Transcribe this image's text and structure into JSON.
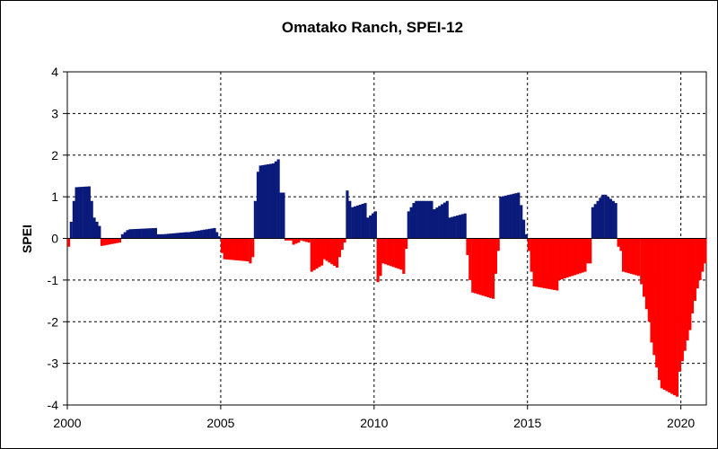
{
  "chart_data": {
    "type": "bar",
    "title": "Omatako Ranch, SPEI-12",
    "xlabel": "",
    "ylabel": "SPEI",
    "xlim": [
      2000,
      2020.83
    ],
    "ylim": [
      -4,
      4
    ],
    "x_ticks": [
      2000,
      2005,
      2010,
      2015,
      2020
    ],
    "y_ticks": [
      4,
      3,
      2,
      1,
      0,
      -1,
      -2,
      -3,
      -4
    ],
    "grid": true,
    "legend": "none",
    "colors": {
      "positive": "#0a1a7a",
      "negative": "#ff0000"
    },
    "segments": [
      {
        "x0": 2000.0,
        "x1": 2000.08,
        "y0": -0.2,
        "y1": -0.2
      },
      {
        "x0": 2000.08,
        "x1": 2000.17,
        "y0": 0.4,
        "y1": 0.5
      },
      {
        "x0": 2000.17,
        "x1": 2000.25,
        "y0": 0.9,
        "y1": 1.1
      },
      {
        "x0": 2000.25,
        "x1": 2000.75,
        "y0": 1.23,
        "y1": 1.25
      },
      {
        "x0": 2000.75,
        "x1": 2000.92,
        "y0": 0.9,
        "y1": 0.5
      },
      {
        "x0": 2000.92,
        "x1": 2001.08,
        "y0": 0.4,
        "y1": 0.3
      },
      {
        "x0": 2001.08,
        "x1": 2001.75,
        "y0": -0.18,
        "y1": -0.1
      },
      {
        "x0": 2001.75,
        "x1": 2002.0,
        "y0": 0.1,
        "y1": 0.2
      },
      {
        "x0": 2002.0,
        "x1": 2002.92,
        "y0": 0.22,
        "y1": 0.25
      },
      {
        "x0": 2002.92,
        "x1": 2003.08,
        "y0": 0.1,
        "y1": 0.1
      },
      {
        "x0": 2003.08,
        "x1": 2003.92,
        "y0": 0.1,
        "y1": 0.15
      },
      {
        "x0": 2003.92,
        "x1": 2004.83,
        "y0": 0.15,
        "y1": 0.25
      },
      {
        "x0": 2004.83,
        "x1": 2005.0,
        "y0": 0.15,
        "y1": 0.05
      },
      {
        "x0": 2005.0,
        "x1": 2005.08,
        "y0": -0.35,
        "y1": -0.35
      },
      {
        "x0": 2005.08,
        "x1": 2005.92,
        "y0": -0.5,
        "y1": -0.55
      },
      {
        "x0": 2005.92,
        "x1": 2006.08,
        "y0": -0.6,
        "y1": -0.45
      },
      {
        "x0": 2006.08,
        "x1": 2006.17,
        "y0": 0.9,
        "y1": 1.3
      },
      {
        "x0": 2006.17,
        "x1": 2006.25,
        "y0": 1.6,
        "y1": 1.7
      },
      {
        "x0": 2006.25,
        "x1": 2006.75,
        "y0": 1.75,
        "y1": 1.8
      },
      {
        "x0": 2006.75,
        "x1": 2006.92,
        "y0": 1.85,
        "y1": 1.9
      },
      {
        "x0": 2006.92,
        "x1": 2007.08,
        "y0": 1.1,
        "y1": 1.1
      },
      {
        "x0": 2007.08,
        "x1": 2007.33,
        "y0": -0.05,
        "y1": -0.05
      },
      {
        "x0": 2007.33,
        "x1": 2007.58,
        "y0": -0.15,
        "y1": -0.1
      },
      {
        "x0": 2007.58,
        "x1": 2007.92,
        "y0": -0.05,
        "y1": -0.1
      },
      {
        "x0": 2007.92,
        "x1": 2008.33,
        "y0": -0.8,
        "y1": -0.65
      },
      {
        "x0": 2008.33,
        "x1": 2008.83,
        "y0": -0.5,
        "y1": -0.7
      },
      {
        "x0": 2008.83,
        "x1": 2009.08,
        "y0": -0.45,
        "y1": -0.1
      },
      {
        "x0": 2009.08,
        "x1": 2009.25,
        "y0": 1.15,
        "y1": 0.9
      },
      {
        "x0": 2009.25,
        "x1": 2009.75,
        "y0": 0.75,
        "y1": 0.85
      },
      {
        "x0": 2009.75,
        "x1": 2010.08,
        "y0": 0.5,
        "y1": 0.65
      },
      {
        "x0": 2010.08,
        "x1": 2010.25,
        "y0": -1.05,
        "y1": -0.9
      },
      {
        "x0": 2010.25,
        "x1": 2010.92,
        "y0": -0.6,
        "y1": -0.75
      },
      {
        "x0": 2010.92,
        "x1": 2011.08,
        "y0": -0.85,
        "y1": -0.25
      },
      {
        "x0": 2011.08,
        "x1": 2011.33,
        "y0": 0.65,
        "y1": 0.85
      },
      {
        "x0": 2011.33,
        "x1": 2011.92,
        "y0": 0.9,
        "y1": 0.9
      },
      {
        "x0": 2011.92,
        "x1": 2012.42,
        "y0": 0.7,
        "y1": 0.9
      },
      {
        "x0": 2012.42,
        "x1": 2013.0,
        "y0": 0.5,
        "y1": 0.6
      },
      {
        "x0": 2013.0,
        "x1": 2013.17,
        "y0": -0.4,
        "y1": -1.0
      },
      {
        "x0": 2013.17,
        "x1": 2013.92,
        "y0": -1.3,
        "y1": -1.45
      },
      {
        "x0": 2013.92,
        "x1": 2014.08,
        "y0": -0.85,
        "y1": -0.3
      },
      {
        "x0": 2014.08,
        "x1": 2014.75,
        "y0": 1.0,
        "y1": 1.1
      },
      {
        "x0": 2014.75,
        "x1": 2015.0,
        "y0": 0.8,
        "y1": 0.1
      },
      {
        "x0": 2015.0,
        "x1": 2015.17,
        "y0": -0.3,
        "y1": -0.8
      },
      {
        "x0": 2015.17,
        "x1": 2016.0,
        "y0": -1.15,
        "y1": -1.25
      },
      {
        "x0": 2016.0,
        "x1": 2016.92,
        "y0": -1.0,
        "y1": -0.8
      },
      {
        "x0": 2016.92,
        "x1": 2017.08,
        "y0": -0.6,
        "y1": -0.6
      },
      {
        "x0": 2017.08,
        "x1": 2017.5,
        "y0": 0.75,
        "y1": 1.05
      },
      {
        "x0": 2017.5,
        "x1": 2017.92,
        "y0": 1.05,
        "y1": 0.85
      },
      {
        "x0": 2017.92,
        "x1": 2018.08,
        "y0": -0.2,
        "y1": -0.3
      },
      {
        "x0": 2018.08,
        "x1": 2018.67,
        "y0": -0.8,
        "y1": -0.9
      },
      {
        "x0": 2018.67,
        "x1": 2019.0,
        "y0": -1.1,
        "y1": -2.0
      },
      {
        "x0": 2019.0,
        "x1": 2019.33,
        "y0": -2.5,
        "y1": -3.4
      },
      {
        "x0": 2019.33,
        "x1": 2019.92,
        "y0": -3.6,
        "y1": -3.8
      },
      {
        "x0": 2019.92,
        "x1": 2020.33,
        "y0": -3.2,
        "y1": -2.2
      },
      {
        "x0": 2020.33,
        "x1": 2020.58,
        "y0": -1.8,
        "y1": -1.2
      },
      {
        "x0": 2020.58,
        "x1": 2020.83,
        "y0": -1.0,
        "y1": -0.6
      }
    ]
  }
}
